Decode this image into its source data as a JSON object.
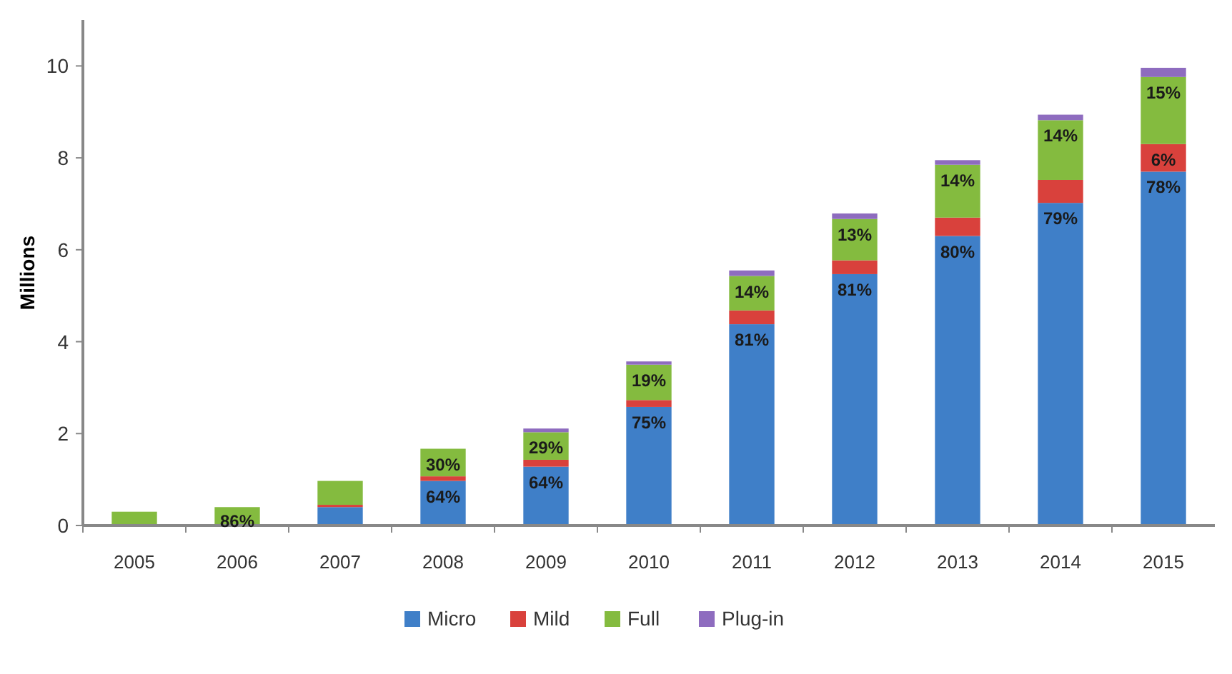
{
  "chart_data": {
    "type": "bar",
    "stacked": true,
    "ylabel": "Millions",
    "ylim": [
      0,
      11
    ],
    "yticks": [
      0,
      2,
      4,
      6,
      8,
      10
    ],
    "grid": false,
    "legend": "bottom",
    "categories": [
      "2005",
      "2006",
      "2007",
      "2008",
      "2009",
      "2010",
      "2011",
      "2012",
      "2013",
      "2014",
      "2015"
    ],
    "series": [
      {
        "name": "Micro",
        "color": "#3f7fc8",
        "values": [
          0,
          null,
          0.4,
          0.97,
          1.28,
          2.58,
          4.38,
          5.47,
          6.3,
          7.02,
          7.7
        ]
      },
      {
        "name": "Mild",
        "color": "#d9413c",
        "values": [
          0,
          null,
          0.05,
          0.1,
          0.15,
          0.15,
          0.3,
          0.3,
          0.4,
          0.5,
          0.6
        ]
      },
      {
        "name": "Full",
        "color": "#84bb3f",
        "values": [
          0.3,
          0.4,
          0.52,
          0.6,
          0.6,
          0.77,
          0.75,
          0.9,
          1.15,
          1.3,
          1.46
        ]
      },
      {
        "name": "Plug-in",
        "color": "#8e6cbf",
        "values": [
          0,
          0,
          0,
          0,
          0.08,
          0.07,
          0.12,
          0.12,
          0.1,
          0.12,
          0.2
        ]
      }
    ],
    "annotations": [
      {
        "text": "64%",
        "x": "2008",
        "y": 0.97
      },
      {
        "text": "64%",
        "x": "2009",
        "y": 1.28
      },
      {
        "text": "75%",
        "x": "2010",
        "y": 2.58
      },
      {
        "text": "81%",
        "x": "2011",
        "y": 4.38
      },
      {
        "text": "81%",
        "x": "2012",
        "y": 5.47
      },
      {
        "text": "80%",
        "x": "2013",
        "y": 6.3
      },
      {
        "text": "79%",
        "x": "2014",
        "y": 7.02
      },
      {
        "text": "78%",
        "x": "2015",
        "y": 7.7
      },
      {
        "text": "6%",
        "x": "2015",
        "y": 8.3
      },
      {
        "text": "86%",
        "x": "2006",
        "y": 0.44
      },
      {
        "text": "30%",
        "x": "2008",
        "y": 1.67
      },
      {
        "text": "29%",
        "x": "2009",
        "y": 2.03
      },
      {
        "text": "19%",
        "x": "2010",
        "y": 3.5
      },
      {
        "text": "14%",
        "x": "2011",
        "y": 5.43
      },
      {
        "text": "13%",
        "x": "2012",
        "y": 6.67
      },
      {
        "text": "14%",
        "x": "2013",
        "y": 7.85
      },
      {
        "text": "14%",
        "x": "2014",
        "y": 8.82
      },
      {
        "text": "15%",
        "x": "2015",
        "y": 9.76
      }
    ]
  }
}
